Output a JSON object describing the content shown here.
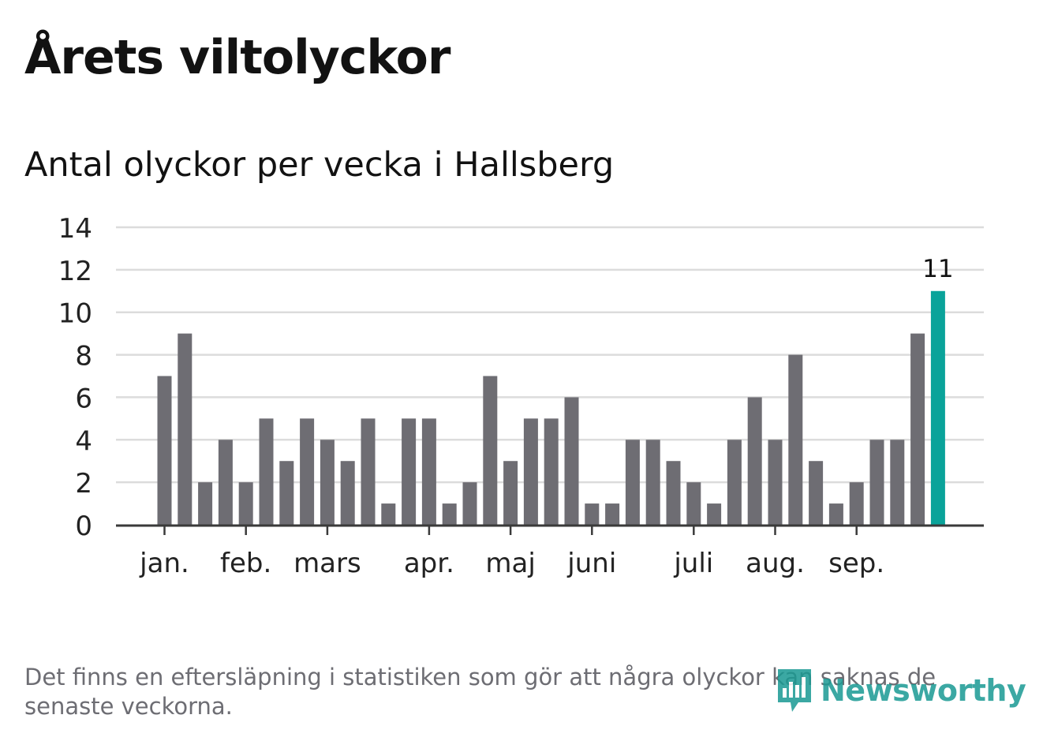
{
  "header": {
    "title": "Årets viltolyckor",
    "subtitle": "Antal olyckor per vecka i Hallsberg"
  },
  "chart_data": {
    "type": "bar",
    "y_ticks": [
      0,
      2,
      4,
      6,
      8,
      10,
      12,
      14
    ],
    "ylim": [
      0,
      14
    ],
    "grid": true,
    "values": [
      7,
      9,
      2,
      4,
      2,
      5,
      3,
      5,
      4,
      3,
      5,
      1,
      5,
      5,
      1,
      2,
      7,
      3,
      5,
      5,
      6,
      1,
      1,
      4,
      4,
      3,
      2,
      1,
      4,
      6,
      4,
      8,
      3,
      1,
      2,
      4,
      4,
      9,
      11
    ],
    "highlight_index": 38,
    "highlight_label": "11",
    "month_labels": [
      {
        "label": "jan.",
        "week_index": 0
      },
      {
        "label": "feb.",
        "week_index": 4
      },
      {
        "label": "mars",
        "week_index": 8
      },
      {
        "label": "apr.",
        "week_index": 13
      },
      {
        "label": "maj",
        "week_index": 17
      },
      {
        "label": "juni",
        "week_index": 21
      },
      {
        "label": "juli",
        "week_index": 26
      },
      {
        "label": "aug.",
        "week_index": 30
      },
      {
        "label": "sep.",
        "week_index": 34
      }
    ],
    "colors": {
      "bar": "#6e6d73",
      "highlight": "#0aa39a",
      "grid": "#dcdcdc",
      "axis": "#3a3a3a",
      "text": "#222222"
    }
  },
  "footer": {
    "note": "Det finns en eftersläpning i statistiken som gör att några olyckor kan saknas de senaste veckorna.",
    "logo_text": "Newsworthy",
    "logo_icon": "bar-chart-speech-bubble-icon"
  }
}
